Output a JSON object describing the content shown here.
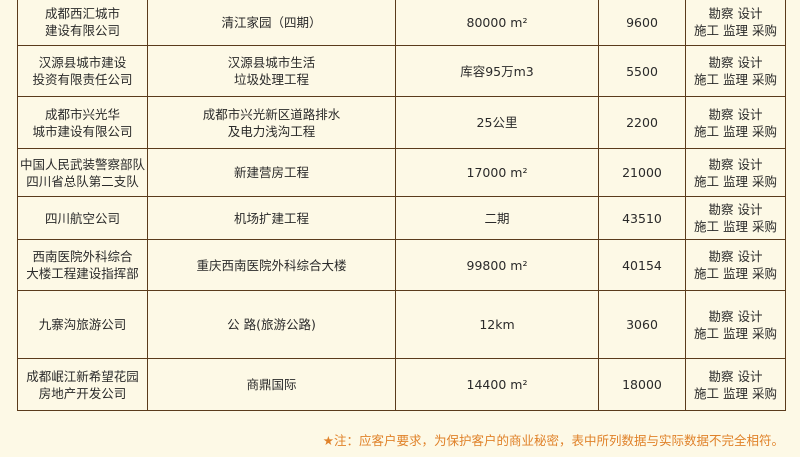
{
  "table": {
    "rows": [
      [
        [
          "成都西汇城市",
          "建设有限公司"
        ],
        [
          "清江家园（四期）"
        ],
        [
          "80000 m²"
        ],
        [
          "9600"
        ],
        [
          "勘察 设计",
          "施工 监理 采购"
        ]
      ],
      [
        [
          "汉源县城市建设",
          "投资有限责任公司"
        ],
        [
          "汉源县城市生活",
          "垃圾处理工程"
        ],
        [
          "库容95万m3"
        ],
        [
          "5500"
        ],
        [
          "勘察 设计",
          "施工 监理 采购"
        ]
      ],
      [
        [
          "成都市兴光华",
          "城市建设有限公司"
        ],
        [
          "成都市兴光新区道路排水",
          "及电力浅沟工程"
        ],
        [
          "25公里"
        ],
        [
          "2200"
        ],
        [
          "勘察 设计",
          "施工 监理 采购"
        ]
      ],
      [
        [
          "中国人民武装警察部队",
          "四川省总队第二支队"
        ],
        [
          "新建营房工程"
        ],
        [
          "17000 m²"
        ],
        [
          "21000"
        ],
        [
          "勘察 设计",
          "施工 监理 采购"
        ]
      ],
      [
        [
          "四川航空公司"
        ],
        [
          "机场扩建工程"
        ],
        [
          "二期"
        ],
        [
          "43510"
        ],
        [
          "勘察 设计",
          "施工 监理 采购"
        ]
      ],
      [
        [
          "西南医院外科综合",
          "大楼工程建设指挥部"
        ],
        [
          "重庆西南医院外科综合大楼"
        ],
        [
          "99800 m²"
        ],
        [
          "40154"
        ],
        [
          "勘察 设计",
          "施工 监理 采购"
        ]
      ],
      [
        [
          "九寨沟旅游公司"
        ],
        [
          "公 路(旅游公路)"
        ],
        [
          "12km"
        ],
        [
          "3060"
        ],
        [
          "勘察 设计",
          "施工 监理 采购"
        ]
      ],
      [
        [
          "成都岷江新希望花园",
          "房地产开发公司"
        ],
        [
          "商鼎国际"
        ],
        [
          "14400 m²"
        ],
        [
          "18000"
        ],
        [
          "勘察 设计",
          "施工 监理 采购"
        ]
      ]
    ]
  },
  "footnote": "★注：应客户要求，为保护客户的商业秘密，表中所列数据与实际数据不完全相符。"
}
